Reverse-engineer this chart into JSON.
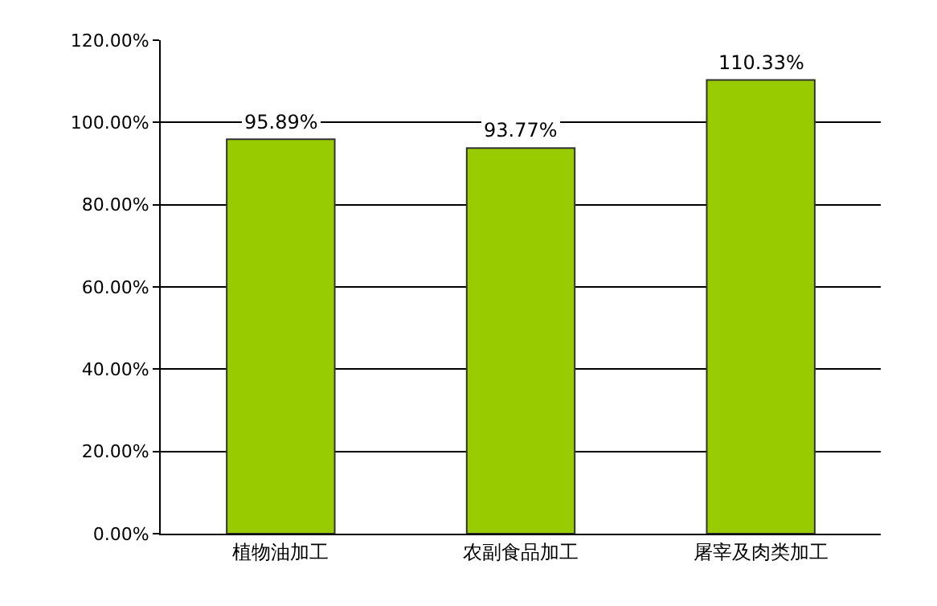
{
  "chart_data": {
    "type": "bar",
    "categories": [
      "植物油加工",
      "农副食品加工",
      "屠宰及肉类加工"
    ],
    "values": [
      95.89,
      93.77,
      110.33
    ],
    "value_labels": [
      "95.89%",
      "93.77%",
      "110.33%"
    ],
    "color": "#99cc00",
    "ylim": [
      0,
      120
    ],
    "yticks": [
      {
        "value": 0,
        "label": "0.00%"
      },
      {
        "value": 20,
        "label": "20.00%"
      },
      {
        "value": 40,
        "label": "40.00%"
      },
      {
        "value": 60,
        "label": "60.00%"
      },
      {
        "value": 80,
        "label": "80.00%"
      },
      {
        "value": 100,
        "label": "100.00%"
      },
      {
        "value": 120,
        "label": "120.00%"
      }
    ],
    "grid": "y"
  }
}
